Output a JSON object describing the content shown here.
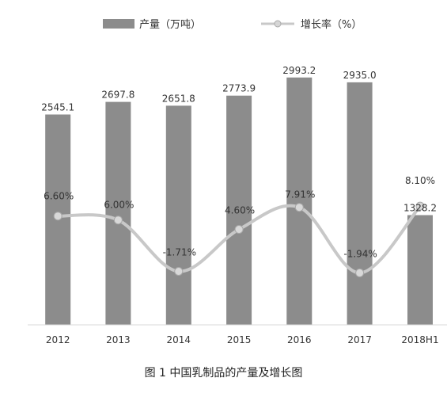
{
  "chart_data": {
    "type": "bar",
    "categories": [
      "2012",
      "2013",
      "2014",
      "2015",
      "2016",
      "2017",
      "2018H1"
    ],
    "series": [
      {
        "name": "产量（万吨）",
        "type": "bar",
        "values": [
          2545.1,
          2697.8,
          2651.8,
          2773.9,
          2993.2,
          2935.0,
          1328.2
        ],
        "labels": [
          "2545.1",
          "2697.8",
          "2651.8",
          "2773.9",
          "2993.2",
          "2935.0",
          "1328.2"
        ],
        "color": "#8c8c8c"
      },
      {
        "name": "增长率（%）",
        "type": "line",
        "values": [
          6.6,
          6.0,
          -1.71,
          4.6,
          7.91,
          -1.94,
          8.1
        ],
        "labels": [
          "6.60%",
          "6.00%",
          "-1.71%",
          "4.60%",
          "7.91%",
          "-1.94%",
          "8.10%"
        ],
        "color": "#c8c8c8"
      }
    ],
    "ylim_left": [
      0,
      3200
    ],
    "ylim_right": [
      -4,
      12
    ],
    "grid": false,
    "legend_position": "top-center",
    "caption": "图 1   中国乳制品的产量及增长图"
  }
}
